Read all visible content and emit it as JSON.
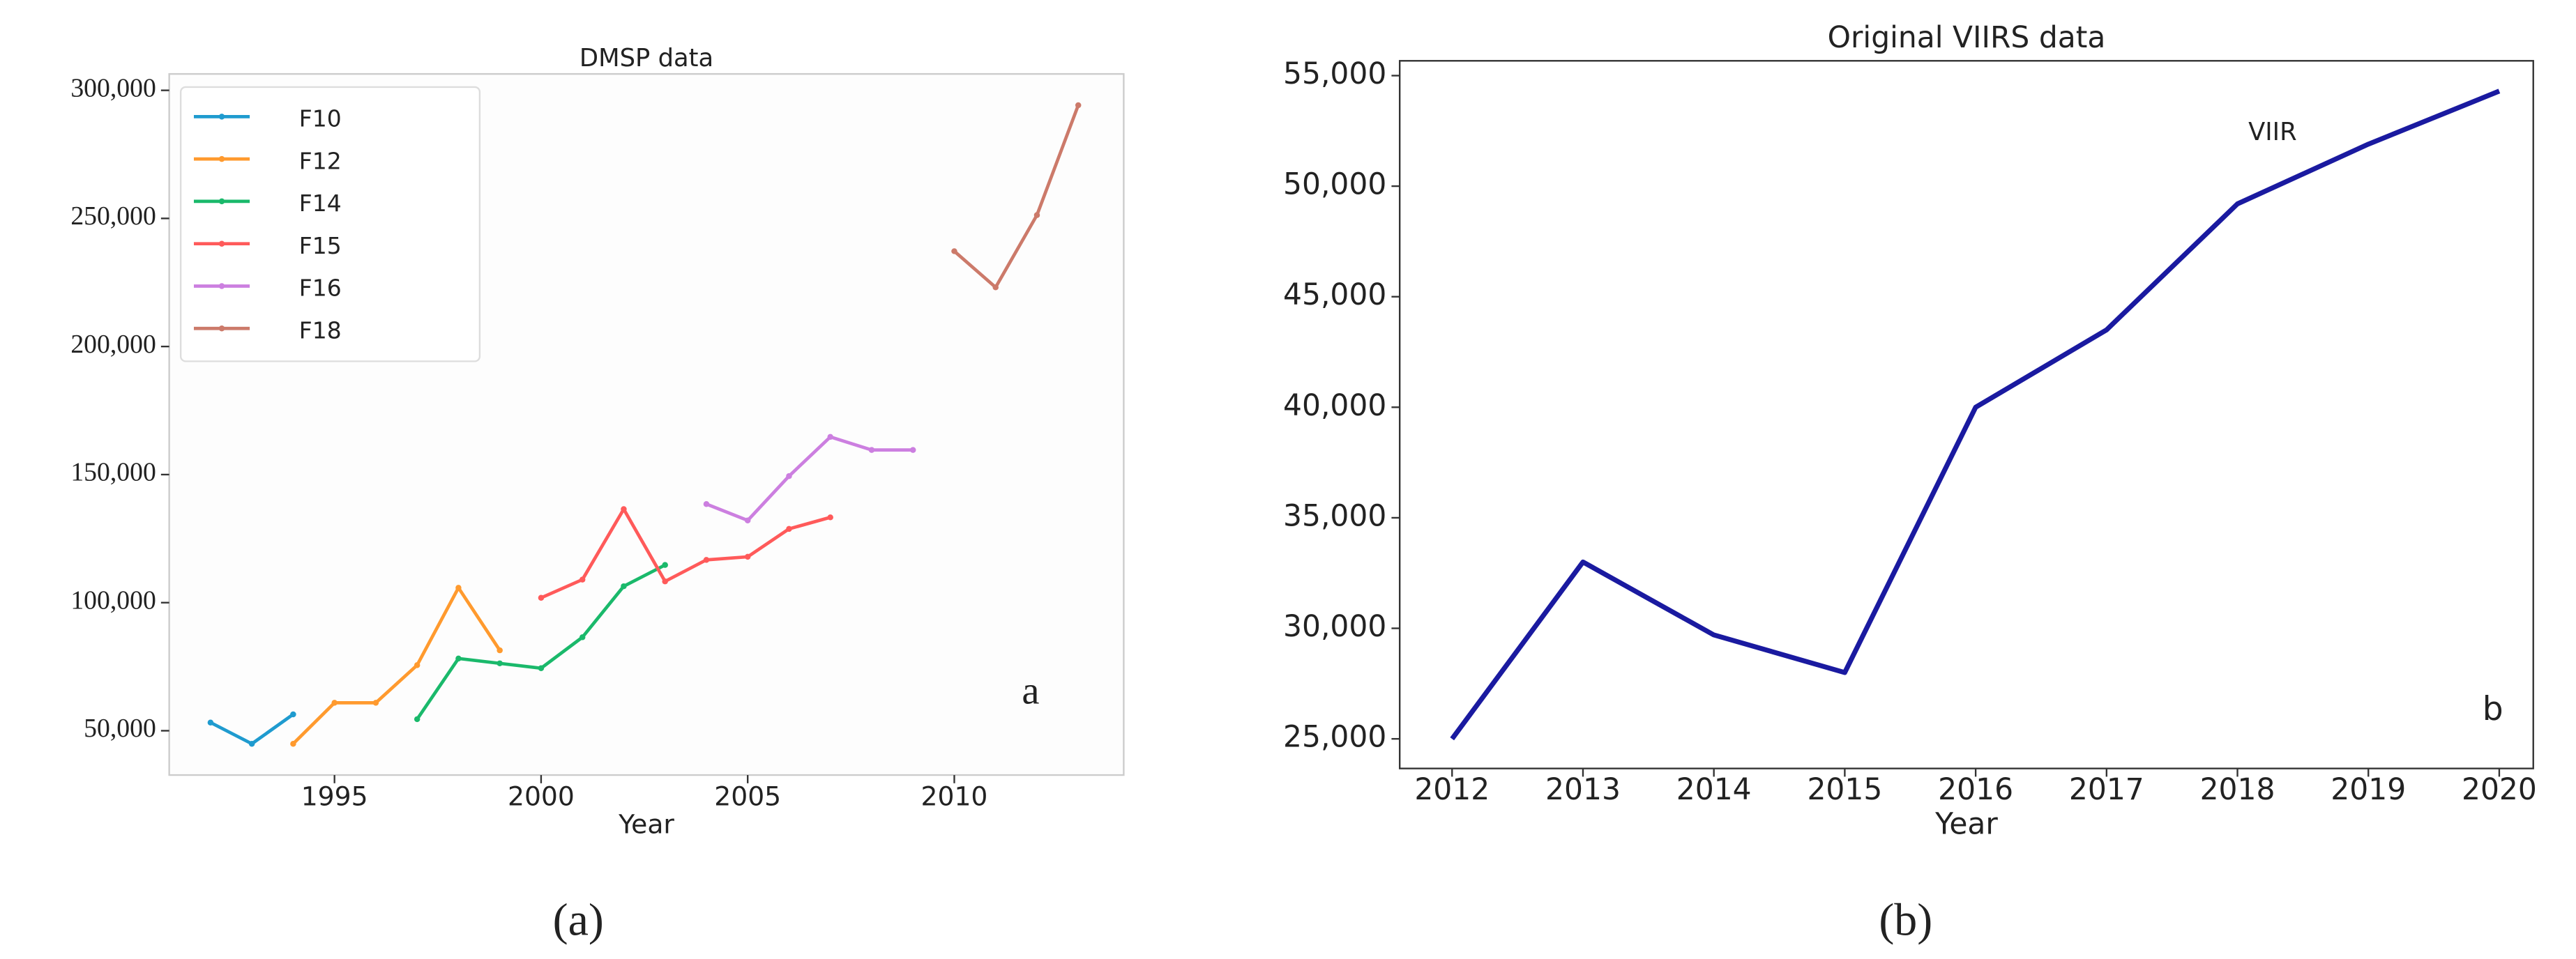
{
  "chart_data": [
    {
      "type": "line",
      "title": "DMSP data",
      "x_label": "Year",
      "annotation": "a",
      "caption": "(a)",
      "xlim": [
        1991,
        2014.1
      ],
      "xticks": [
        1995,
        2000,
        2005,
        2010
      ],
      "ylim": [
        32700,
        306400
      ],
      "yticks": [
        {
          "value": 50000,
          "label": "50,000"
        },
        {
          "value": 100000,
          "label": "100,000"
        },
        {
          "value": 150000,
          "label": "150,000"
        },
        {
          "value": 200000,
          "label": "200,000"
        },
        {
          "value": 250000,
          "label": "250,000"
        },
        {
          "value": 300000,
          "label": "300,000"
        }
      ],
      "legend": "upper left",
      "grid": false,
      "markers": true,
      "series": [
        {
          "name": "F10",
          "color": "#1f9bcf",
          "x": [
            1992,
            1993,
            1994
          ],
          "values": [
            53200,
            44900,
            56400
          ]
        },
        {
          "name": "F12",
          "color": "#ff9a2e",
          "x": [
            1994,
            1995,
            1996,
            1997,
            1998,
            1999
          ],
          "values": [
            44900,
            60900,
            60900,
            75600,
            105800,
            81400
          ]
        },
        {
          "name": "F14",
          "color": "#1ab96b",
          "x": [
            1997,
            1998,
            1999,
            2000,
            2001,
            2002,
            2003
          ],
          "values": [
            54500,
            78200,
            76300,
            74400,
            86500,
            106400,
            114700
          ]
        },
        {
          "name": "F15",
          "color": "#ff5a5a",
          "x": [
            2000,
            2001,
            2002,
            2003,
            2004,
            2005,
            2006,
            2007
          ],
          "values": [
            101900,
            109000,
            136500,
            108300,
            116700,
            117900,
            128800,
            133300
          ]
        },
        {
          "name": "F16",
          "color": "#cc7fe0",
          "x": [
            2004,
            2005,
            2006,
            2007,
            2008,
            2009
          ],
          "values": [
            138500,
            132100,
            149400,
            164700,
            159600,
            159600
          ]
        },
        {
          "name": "F18",
          "color": "#cc7a6a",
          "x": [
            2010,
            2011,
            2012,
            2013
          ],
          "values": [
            237200,
            223100,
            251300,
            294200
          ]
        }
      ]
    },
    {
      "type": "line",
      "title": "Original VIIRS data",
      "x_label": "Year",
      "annotation": "b",
      "caption": "(b)",
      "x": [
        2012,
        2013,
        2014,
        2015,
        2016,
        2017,
        2018,
        2019,
        2020
      ],
      "xlim": [
        2011.6,
        2020.26
      ],
      "xticks": [
        2012,
        2013,
        2014,
        2015,
        2016,
        2017,
        2018,
        2019,
        2020
      ],
      "ylim": [
        23660,
        55670
      ],
      "yticks": [
        {
          "value": 25000,
          "label": "25,000"
        },
        {
          "value": 30000,
          "label": "30,000"
        },
        {
          "value": 35000,
          "label": "35,000"
        },
        {
          "value": 40000,
          "label": "40,000"
        },
        {
          "value": 45000,
          "label": "45,000"
        },
        {
          "value": 50000,
          "label": "50,000"
        },
        {
          "value": 55000,
          "label": "55,000"
        }
      ],
      "grid": false,
      "markers": false,
      "series": [
        {
          "name": "VIIR",
          "color": "#1a1aa0",
          "values": [
            25000,
            33000,
            29700,
            28000,
            40000,
            43500,
            49200,
            51900,
            54300
          ]
        }
      ]
    }
  ]
}
